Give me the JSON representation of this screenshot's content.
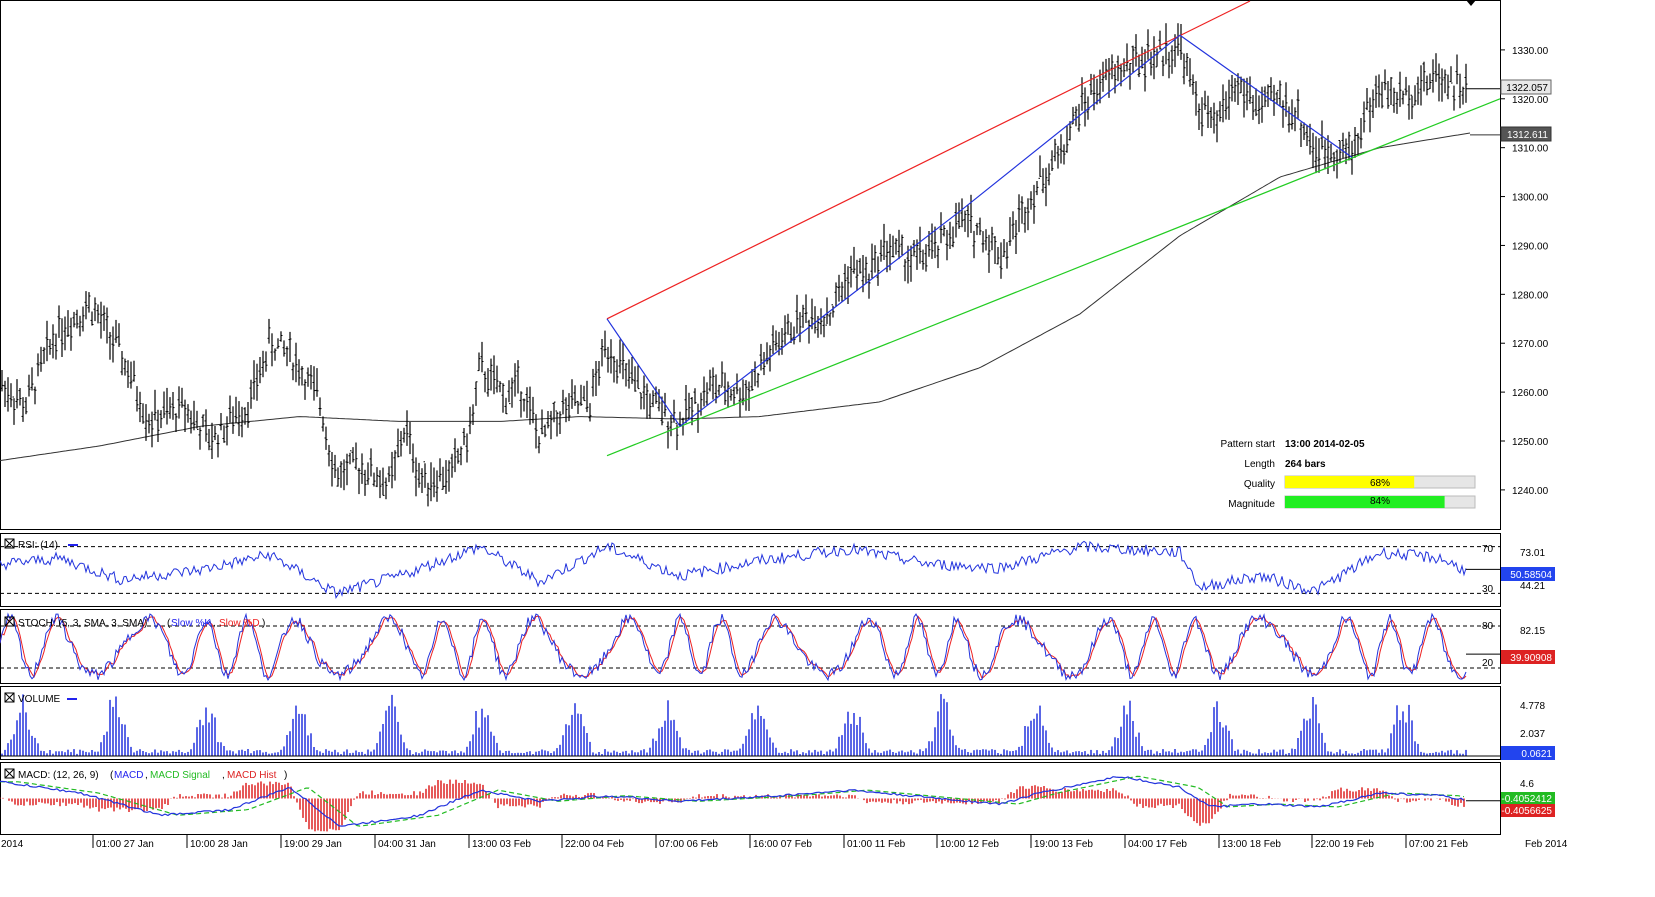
{
  "chart_data": {
    "type": "candlestick",
    "instrument_note": "",
    "main": {
      "ylim": [
        1232,
        1340
      ],
      "y_ticks": [
        "1330.00",
        "1320.00",
        "1310.00",
        "1300.00",
        "1290.00",
        "1280.00",
        "1270.00",
        "1260.00",
        "1250.00",
        "1240.00"
      ],
      "y_tick_values": [
        1330,
        1320,
        1310,
        1300,
        1290,
        1280,
        1270,
        1260,
        1250,
        1240
      ],
      "last_price_label": "1322.057",
      "last_price": 1322.057,
      "sma_label": "1312.611",
      "sma_value": 1312.611,
      "price_keypoints": [
        [
          0,
          1262
        ],
        [
          25,
          1257
        ],
        [
          55,
          1272
        ],
        [
          90,
          1278
        ],
        [
          120,
          1268
        ],
        [
          150,
          1254
        ],
        [
          185,
          1257
        ],
        [
          210,
          1250
        ],
        [
          250,
          1258
        ],
        [
          270,
          1270
        ],
        [
          290,
          1268
        ],
        [
          320,
          1258
        ],
        [
          336,
          1243
        ],
        [
          360,
          1245
        ],
        [
          390,
          1241
        ],
        [
          405,
          1253
        ],
        [
          420,
          1242
        ],
        [
          450,
          1243
        ],
        [
          470,
          1252
        ],
        [
          480,
          1265
        ],
        [
          505,
          1259
        ],
        [
          520,
          1262
        ],
        [
          540,
          1250
        ],
        [
          560,
          1256
        ],
        [
          590,
          1258
        ],
        [
          607,
          1270
        ],
        [
          630,
          1262
        ],
        [
          660,
          1256
        ],
        [
          680,
          1254
        ],
        [
          710,
          1261
        ],
        [
          745,
          1260
        ],
        [
          770,
          1268
        ],
        [
          800,
          1275
        ],
        [
          830,
          1276
        ],
        [
          850,
          1285
        ],
        [
          870,
          1284
        ],
        [
          885,
          1290
        ],
        [
          910,
          1287
        ],
        [
          935,
          1289
        ],
        [
          960,
          1295
        ],
        [
          980,
          1293
        ],
        [
          1002,
          1288
        ],
        [
          1030,
          1300
        ],
        [
          1060,
          1309
        ],
        [
          1080,
          1318
        ],
        [
          1100,
          1323
        ],
        [
          1120,
          1326
        ],
        [
          1140,
          1328
        ],
        [
          1160,
          1329
        ],
        [
          1180,
          1331
        ],
        [
          1195,
          1320
        ],
        [
          1215,
          1314
        ],
        [
          1235,
          1323
        ],
        [
          1260,
          1318
        ],
        [
          1280,
          1320
        ],
        [
          1300,
          1316
        ],
        [
          1315,
          1309
        ],
        [
          1335,
          1310
        ],
        [
          1352,
          1309
        ],
        [
          1365,
          1317
        ],
        [
          1380,
          1322
        ],
        [
          1400,
          1320
        ],
        [
          1420,
          1323
        ],
        [
          1440,
          1325
        ],
        [
          1465,
          1322
        ]
      ],
      "sma_keypoints": [
        [
          0,
          1246
        ],
        [
          100,
          1249
        ],
        [
          200,
          1253
        ],
        [
          300,
          1255
        ],
        [
          400,
          1254
        ],
        [
          500,
          1254
        ],
        [
          580,
          1255
        ],
        [
          680,
          1254.5
        ],
        [
          760,
          1255
        ],
        [
          880,
          1258
        ],
        [
          980,
          1265
        ],
        [
          1080,
          1276
        ],
        [
          1180,
          1292
        ],
        [
          1280,
          1304
        ],
        [
          1380,
          1310
        ],
        [
          1470,
          1313
        ]
      ],
      "pattern_lines": {
        "resistance": {
          "from": [
            607,
            1275
          ],
          "to": [
            1250,
            1340
          ]
        },
        "support": {
          "from": [
            607,
            1247
          ],
          "to": [
            1500,
            1320
          ]
        },
        "zigzag": [
          [
            607,
            1275
          ],
          [
            680,
            1253
          ],
          [
            960,
            1297
          ],
          [
            1180,
            1333
          ],
          [
            1352,
            1308
          ]
        ]
      },
      "pattern_info": {
        "rows": [
          {
            "label": "Pattern start",
            "value": "13:00 2014-02-05"
          },
          {
            "label": "Length",
            "value": "264 bars"
          },
          {
            "label": "Quality",
            "value": "68%",
            "fraction": 0.68,
            "color": "#ffff00"
          },
          {
            "label": "Magnitude",
            "value": "84%",
            "fraction": 0.84,
            "color": "#22ee22"
          }
        ]
      }
    },
    "rsi": {
      "label": "RSI: (14)",
      "ylim": [
        20,
        80
      ],
      "levels": [
        {
          "value": 70,
          "label": "70"
        },
        {
          "value": 30,
          "label": "30"
        }
      ],
      "top_label": "73.01",
      "bottom_label": "44.21",
      "current": 50.58504,
      "current_label": "50.58504",
      "keypoints": [
        [
          0,
          55
        ],
        [
          60,
          60
        ],
        [
          120,
          42
        ],
        [
          200,
          50
        ],
        [
          270,
          63
        ],
        [
          336,
          30
        ],
        [
          400,
          45
        ],
        [
          480,
          70
        ],
        [
          540,
          40
        ],
        [
          607,
          70
        ],
        [
          680,
          45
        ],
        [
          760,
          58
        ],
        [
          850,
          68
        ],
        [
          930,
          55
        ],
        [
          1000,
          52
        ],
        [
          1080,
          70
        ],
        [
          1180,
          65
        ],
        [
          1200,
          35
        ],
        [
          1260,
          45
        ],
        [
          1315,
          32
        ],
        [
          1380,
          65
        ],
        [
          1440,
          60
        ],
        [
          1470,
          48
        ]
      ]
    },
    "stoch": {
      "label": "STOCH: (5, 3, SMA, 3, SMA)",
      "legend": [
        {
          "name": "Slow %K",
          "color": "#2222ee"
        },
        {
          "name": "Slow %D",
          "color": "#ee2222"
        }
      ],
      "levels": [
        {
          "value": 80,
          "label": "80"
        },
        {
          "value": 20,
          "label": "20"
        }
      ],
      "top_label": "82.15",
      "current": 39.90908,
      "current_label": "39.90908"
    },
    "volume": {
      "label": "VOLUME",
      "top_label": "4.778",
      "mid_label": "2.037",
      "ymax": 5.2,
      "current": 0.0621,
      "current_label": "0.0621"
    },
    "macd": {
      "label": "MACD: (12, 26, 9)",
      "legend": [
        {
          "name": "MACD",
          "color": "#2222ee"
        },
        {
          "name": "MACD Signal",
          "color": "#22bb22"
        },
        {
          "name": "MACD Hist",
          "color": "#dd2222"
        }
      ],
      "top_label": "4.6",
      "ylim": [
        -6,
        6
      ],
      "current_label": "-0.4056625",
      "current": -0.4056625,
      "signal_label": "-0.4052412",
      "keypoints": [
        [
          0,
          3
        ],
        [
          80,
          1
        ],
        [
          160,
          -3
        ],
        [
          230,
          -2
        ],
        [
          290,
          2
        ],
        [
          340,
          -5
        ],
        [
          420,
          -3
        ],
        [
          480,
          1.5
        ],
        [
          540,
          -0.5
        ],
        [
          607,
          0.5
        ],
        [
          680,
          -0.5
        ],
        [
          780,
          0.5
        ],
        [
          850,
          1.5
        ],
        [
          940,
          0
        ],
        [
          1000,
          -1
        ],
        [
          1040,
          1
        ],
        [
          1120,
          4
        ],
        [
          1180,
          2
        ],
        [
          1210,
          -1.5
        ],
        [
          1260,
          -1
        ],
        [
          1320,
          -1.5
        ],
        [
          1380,
          1
        ],
        [
          1440,
          0.5
        ],
        [
          1470,
          -0.4
        ]
      ]
    },
    "x_labels": [
      "2014",
      "01:00 27 Jan",
      "10:00 28 Jan",
      "19:00 29 Jan",
      "04:00 31 Jan",
      "13:00 03 Feb",
      "22:00 04 Feb",
      "07:00 06 Feb",
      "16:00 07 Feb",
      "01:00 11 Feb",
      "10:00 12 Feb",
      "19:00 13 Feb",
      "04:00 17 Feb",
      "13:00 18 Feb",
      "22:00 19 Feb",
      "07:00 21 Feb",
      "Feb 2014"
    ],
    "colors": {
      "bars": "#000000",
      "sma": "#333333",
      "resistance": "#ee2222",
      "support": "#22cc22",
      "zigzag": "#2233dd",
      "last_price_box": "#e8e8e8",
      "sma_box": "#555555"
    }
  }
}
